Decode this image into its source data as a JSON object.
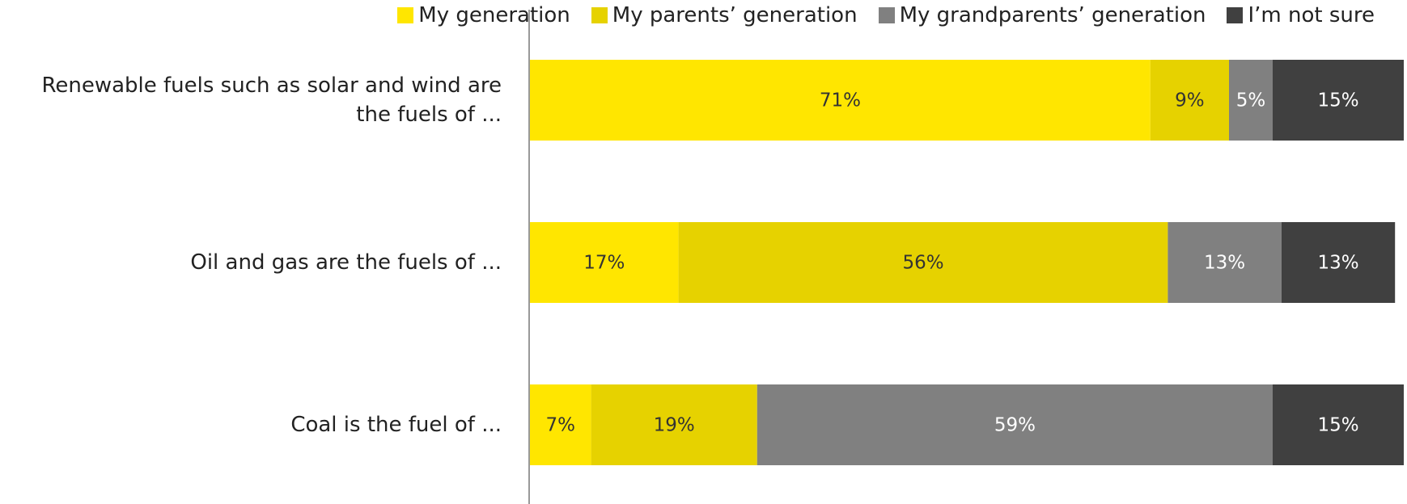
{
  "chart_data": {
    "type": "stacked-bar-horizontal",
    "categories": [
      "Renewable fuels such as solar and wind are the fuels of ...",
      "Oil and gas are the fuels of ...",
      "Coal is the fuel of ..."
    ],
    "series": [
      {
        "name": "My generation",
        "color": "#ffe600",
        "label_color": "#333333",
        "values": [
          71,
          17,
          7
        ],
        "value_labels": [
          "71%",
          "17%",
          "7%"
        ]
      },
      {
        "name": "My parents’ generation",
        "color": "#e6d200",
        "label_color": "#333333",
        "values": [
          9,
          56,
          19
        ],
        "value_labels": [
          "9%",
          "56%",
          "19%"
        ]
      },
      {
        "name": "My grandparents’ generation",
        "color": "#808080",
        "label_color": "#ffffff",
        "values": [
          5,
          13,
          59
        ],
        "value_labels": [
          "5%",
          "13%",
          "59%"
        ]
      },
      {
        "name": "I’m not sure",
        "color": "#404040",
        "label_color": "#ffffff",
        "values": [
          15,
          13,
          15
        ],
        "value_labels": [
          "15%",
          "13%",
          "15%"
        ]
      }
    ],
    "xlim": [
      0,
      100
    ],
    "legend": "top"
  }
}
